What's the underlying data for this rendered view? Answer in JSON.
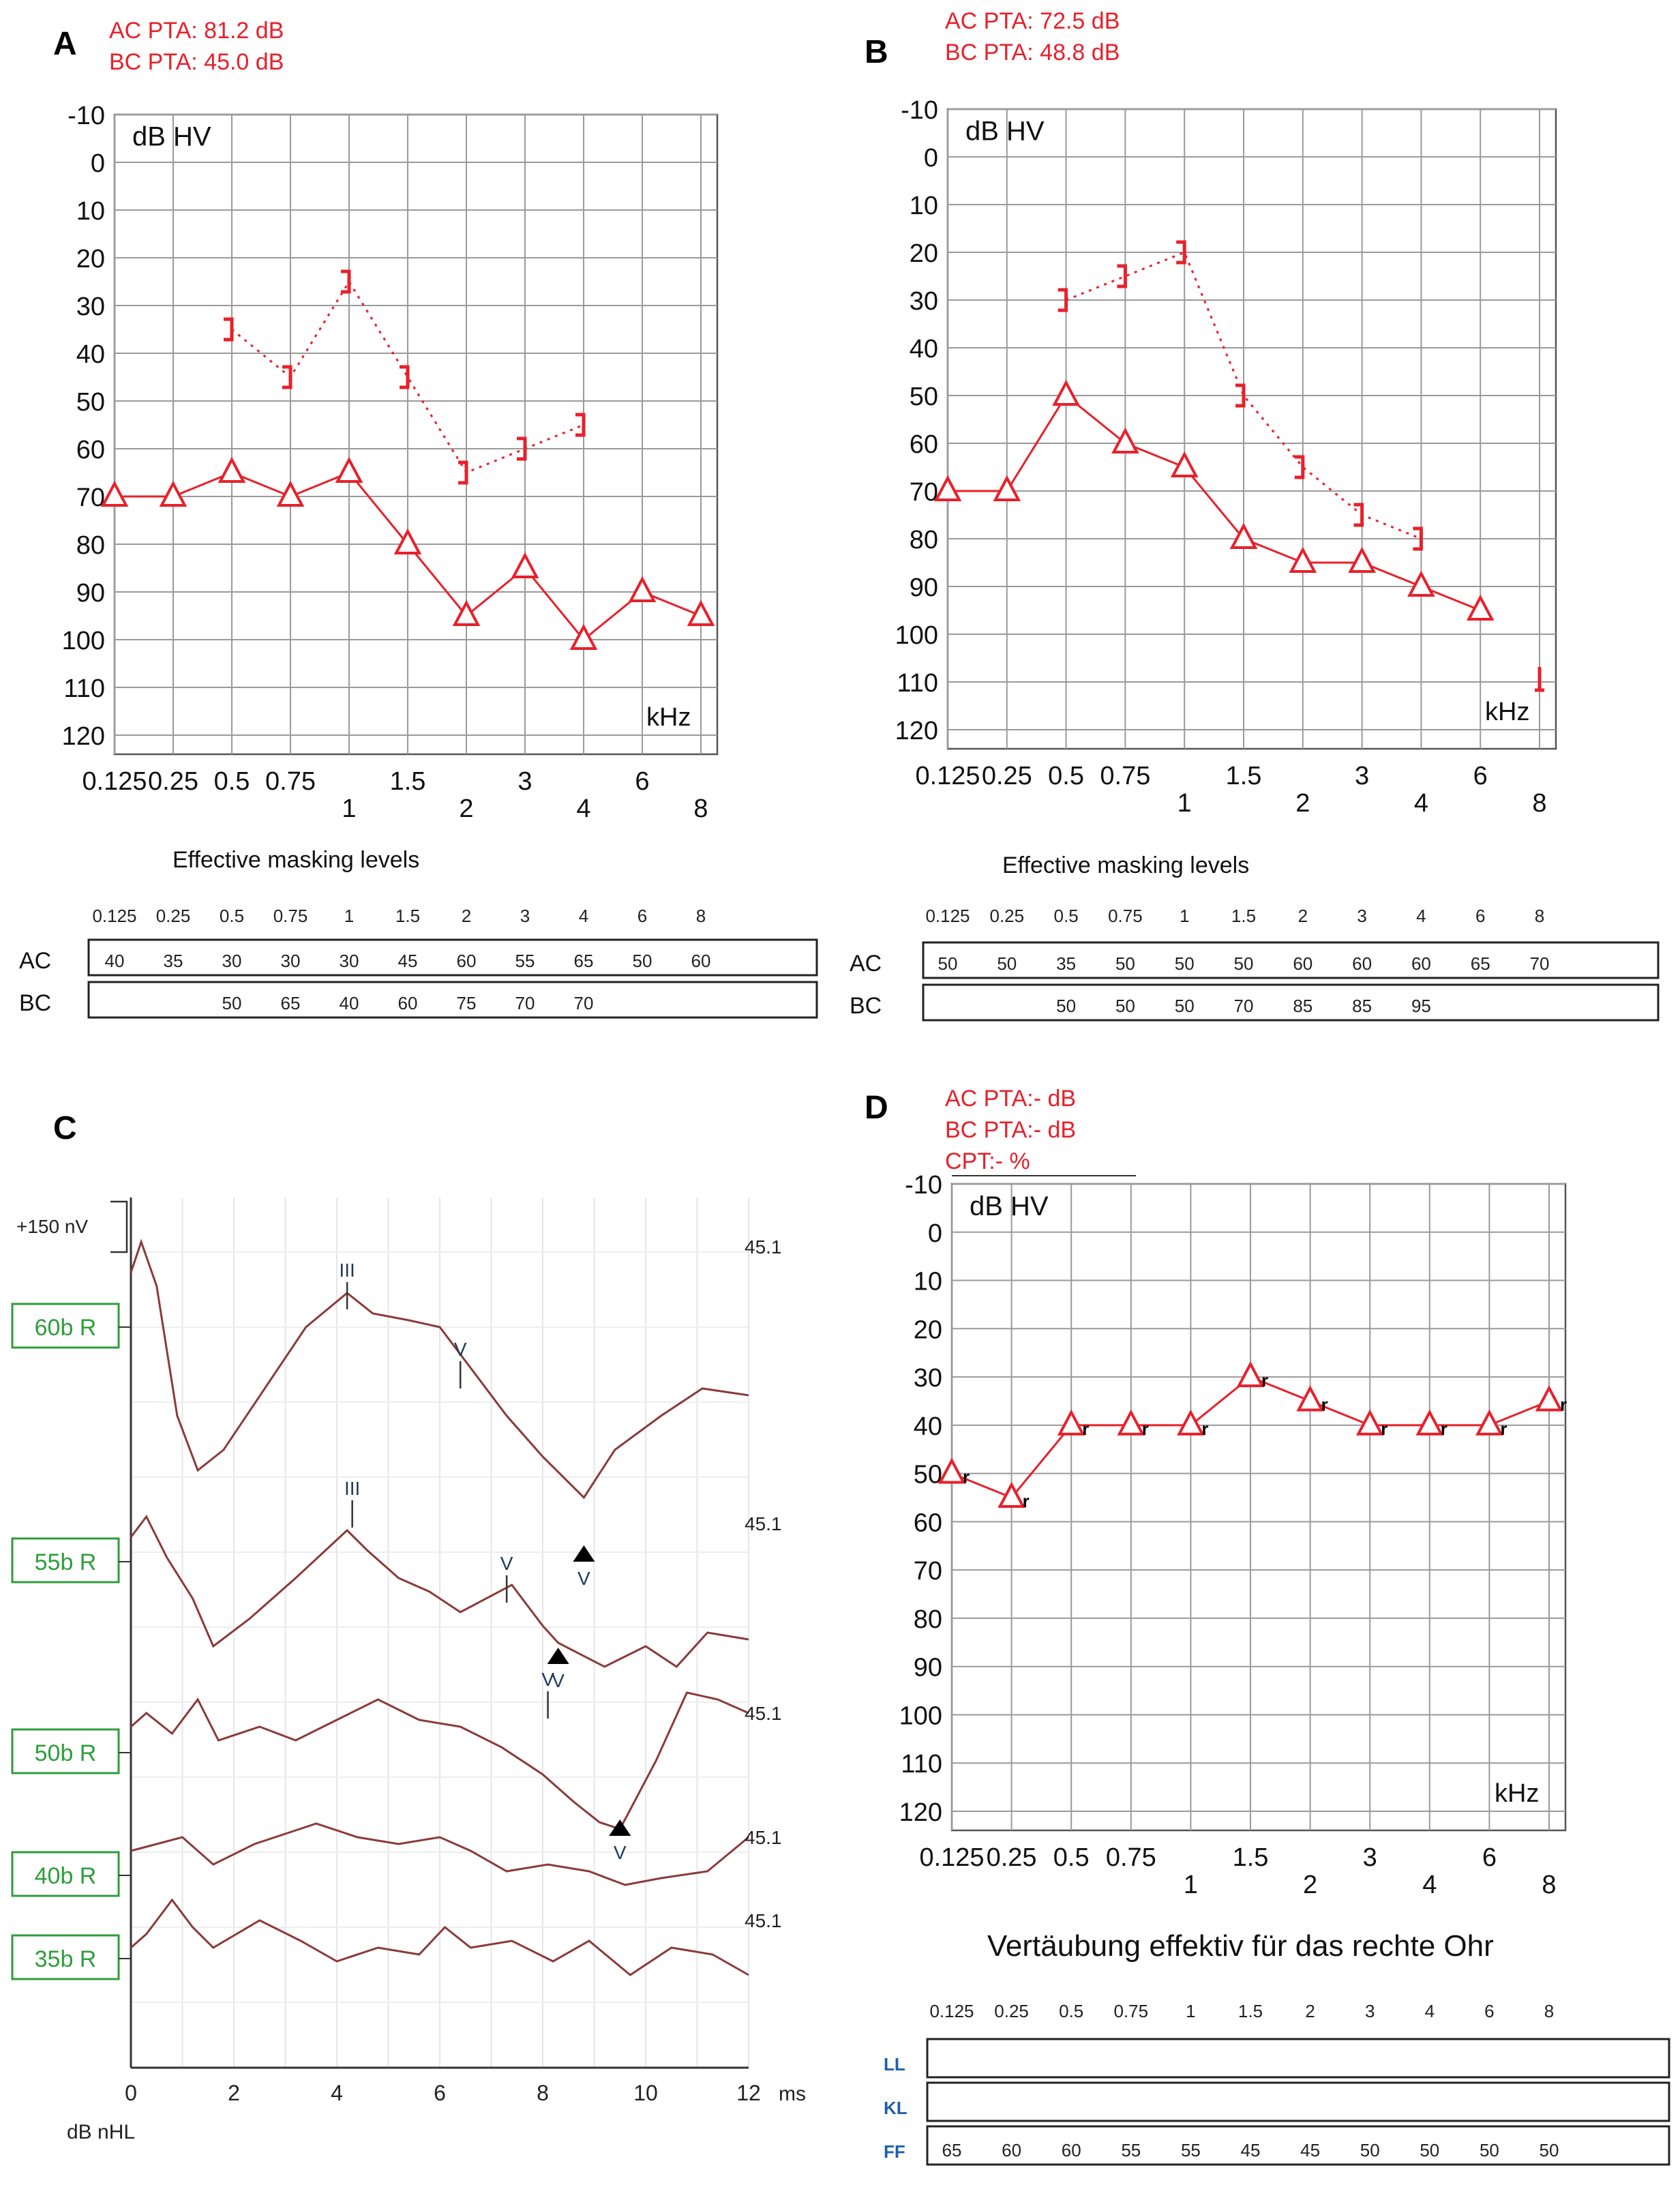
{
  "colors": {
    "red": "#e8202a",
    "abr_trace": "#8b3a3a",
    "grid": "#9a9a9a",
    "label_green": "#2e9e3a",
    "ff_blue": "#1f5faa"
  },
  "panel_labels": {
    "a": "A",
    "b": "B",
    "c": "C",
    "d": "D"
  },
  "unit_label": "dB HV",
  "khz_label": "kHz",
  "chart_data": [
    {
      "id": "A",
      "type": "line",
      "pta_lines": [
        "AC PTA: 81.2 dB",
        "BC PTA: 45.0 dB"
      ],
      "ylim": [
        -10,
        120
      ],
      "y_ticks": [
        "-10",
        "0",
        "10",
        "20",
        "30",
        "40",
        "50",
        "60",
        "70",
        "80",
        "90",
        "100",
        "110",
        "120"
      ],
      "x_ticks": [
        "0.125",
        "0.25",
        "0.5",
        "0.75",
        "1",
        "1.5",
        "2",
        "3",
        "4",
        "6",
        "8"
      ],
      "series": [
        {
          "marker": "triangle",
          "style": "solid",
          "x": [
            0.125,
            0.25,
            0.5,
            0.75,
            1,
            1.5,
            2,
            3,
            4,
            6,
            8
          ],
          "y": [
            70,
            70,
            65,
            70,
            65,
            80,
            95,
            85,
            100,
            90,
            95
          ]
        },
        {
          "marker": "bracket",
          "style": "dotted",
          "x": [
            0.5,
            0.75,
            1,
            1.5,
            2,
            3,
            4
          ],
          "y": [
            35,
            45,
            25,
            45,
            65,
            60,
            55
          ]
        }
      ],
      "masking": {
        "title": "Effective masking levels",
        "freqs": [
          "0.125",
          "0.25",
          "0.5",
          "0.75",
          "1",
          "1.5",
          "2",
          "3",
          "4",
          "6",
          "8"
        ],
        "rows": [
          {
            "label": "AC",
            "values": [
              "40",
              "35",
              "30",
              "30",
              "30",
              "45",
              "60",
              "55",
              "65",
              "50",
              "60"
            ]
          },
          {
            "label": "BC",
            "values": [
              "",
              "",
              "50",
              "65",
              "40",
              "60",
              "75",
              "70",
              "70",
              "",
              ""
            ]
          }
        ]
      }
    },
    {
      "id": "B",
      "type": "line",
      "pta_lines": [
        "AC PTA: 72.5 dB",
        "BC PTA: 48.8 dB"
      ],
      "ylim": [
        -10,
        120
      ],
      "y_ticks": [
        "-10",
        "0",
        "10",
        "20",
        "30",
        "40",
        "50",
        "60",
        "70",
        "80",
        "90",
        "100",
        "110",
        "120"
      ],
      "x_ticks": [
        "0.125",
        "0.25",
        "0.5",
        "0.75",
        "1",
        "1.5",
        "2",
        "3",
        "4",
        "6",
        "8"
      ],
      "series": [
        {
          "marker": "triangle",
          "style": "solid",
          "x": [
            0.125,
            0.25,
            0.5,
            0.75,
            1,
            1.5,
            2,
            3,
            4,
            6
          ],
          "y": [
            70,
            70,
            50,
            60,
            65,
            80,
            85,
            85,
            90,
            95
          ]
        },
        {
          "marker": "bracket",
          "style": "dotted",
          "x": [
            0.5,
            0.75,
            1,
            1.5,
            2,
            3,
            4
          ],
          "y": [
            30,
            25,
            20,
            50,
            65,
            75,
            80
          ]
        },
        {
          "marker": "no-response",
          "style": "none",
          "x": [
            8
          ],
          "y": [
            110
          ]
        }
      ],
      "masking": {
        "title": "Effective masking levels",
        "freqs": [
          "0.125",
          "0.25",
          "0.5",
          "0.75",
          "1",
          "1.5",
          "2",
          "3",
          "4",
          "6",
          "8"
        ],
        "rows": [
          {
            "label": "AC",
            "values": [
              "50",
              "50",
              "35",
              "50",
              "50",
              "50",
              "60",
              "60",
              "60",
              "65",
              "70"
            ]
          },
          {
            "label": "BC",
            "values": [
              "",
              "",
              "50",
              "50",
              "50",
              "70",
              "85",
              "85",
              "95",
              "",
              ""
            ]
          }
        ]
      }
    },
    {
      "id": "C",
      "type": "line",
      "scale_label": "+150 nV",
      "x_label": "dB nHL",
      "x_unit": "ms",
      "xlim": [
        0,
        12
      ],
      "x_ticks": [
        "0",
        "2",
        "4",
        "6",
        "8",
        "10",
        "12"
      ],
      "series": [
        {
          "name": "60b R",
          "end_value": "45.1",
          "wave_labels": [
            "III",
            "V"
          ],
          "trough_label": "V"
        },
        {
          "name": "55b R",
          "end_value": "45.1",
          "wave_labels": [
            "III",
            "V"
          ],
          "trough_label": "V"
        },
        {
          "name": "50b R",
          "end_value": "45.1",
          "wave_labels": [
            "V"
          ],
          "trough_label": "V"
        },
        {
          "name": "40b R",
          "end_value": "45.1",
          "wave_labels": [],
          "trough_label": ""
        },
        {
          "name": "35b R",
          "end_value": "45.1",
          "wave_labels": [],
          "trough_label": ""
        }
      ]
    },
    {
      "id": "D",
      "type": "line",
      "pta_lines": [
        "AC PTA:- dB",
        "BC PTA:- dB",
        "CPT:- %"
      ],
      "ylim": [
        -10,
        120
      ],
      "y_ticks": [
        "-10",
        "0",
        "10",
        "20",
        "30",
        "40",
        "50",
        "60",
        "70",
        "80",
        "90",
        "100",
        "110",
        "120"
      ],
      "x_ticks": [
        "0.125",
        "0.25",
        "0.5",
        "0.75",
        "1",
        "1.5",
        "2",
        "3",
        "4",
        "6",
        "8"
      ],
      "series": [
        {
          "marker": "triangle-r",
          "style": "solid",
          "x": [
            0.125,
            0.25,
            0.5,
            0.75,
            1,
            1.5,
            2,
            3,
            4,
            6,
            8
          ],
          "y": [
            50,
            55,
            40,
            40,
            40,
            30,
            35,
            40,
            40,
            40,
            35
          ]
        }
      ],
      "masking": {
        "title": "Vertäubung effektiv für das rechte Ohr",
        "freqs": [
          "0.125",
          "0.25",
          "0.5",
          "0.75",
          "1",
          "1.5",
          "2",
          "3",
          "4",
          "6",
          "8"
        ],
        "rows": [
          {
            "label": "LL",
            "values": [
              "",
              "",
              "",
              "",
              "",
              "",
              "",
              "",
              "",
              "",
              ""
            ]
          },
          {
            "label": "KL",
            "values": [
              "",
              "",
              "",
              "",
              "",
              "",
              "",
              "",
              "",
              "",
              ""
            ]
          },
          {
            "label": "FF",
            "values": [
              "65",
              "60",
              "60",
              "55",
              "55",
              "45",
              "45",
              "50",
              "50",
              "50",
              "50"
            ]
          }
        ]
      }
    }
  ]
}
